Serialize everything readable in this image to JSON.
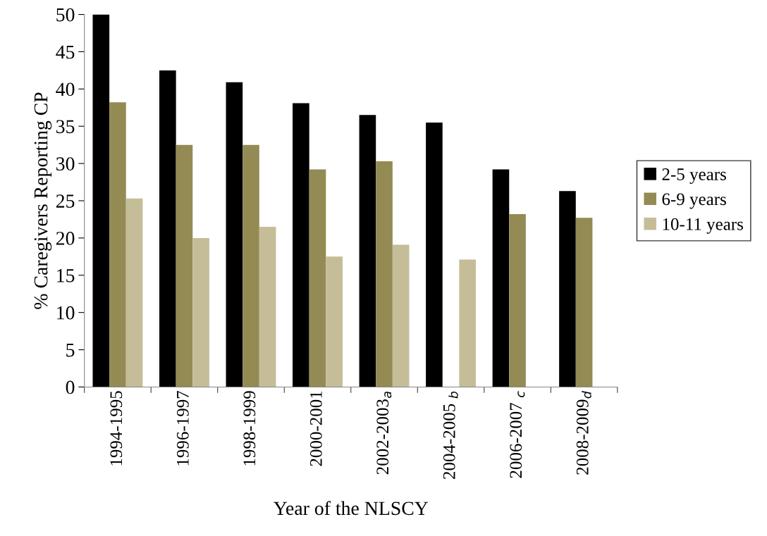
{
  "chart_data": {
    "type": "bar",
    "xlabel": "Year of the NLSCY",
    "ylabel": "% Caregivers Reporting CP",
    "categories": [
      "1994-1995",
      "1996-1997",
      "1998-1999",
      "2000-2001",
      "2002-2003$_{a}$",
      "2004-2005 $_{b}$",
      "2006-2007 $_{c}$",
      "2008-2009$_{d}$"
    ],
    "series": [
      {
        "name": "2-5 years",
        "color": "#000000",
        "values": [
          50,
          42.5,
          40.9,
          38.1,
          36.5,
          35.5,
          29.2,
          26.3
        ]
      },
      {
        "name": "6-9 years",
        "color": "#948a54",
        "values": [
          38.2,
          32.5,
          32.5,
          29.2,
          30.3,
          null,
          23.2,
          22.7
        ]
      },
      {
        "name": "10-11 years",
        "color": "#c4bd97",
        "values": [
          25.3,
          20,
          21.5,
          17.5,
          19.1,
          17.1,
          null,
          null
        ]
      }
    ],
    "ylim": [
      0,
      50
    ],
    "yticks": [
      0,
      5,
      10,
      15,
      20,
      25,
      30,
      35,
      40,
      45,
      50
    ],
    "grid": false,
    "legend": "right"
  }
}
